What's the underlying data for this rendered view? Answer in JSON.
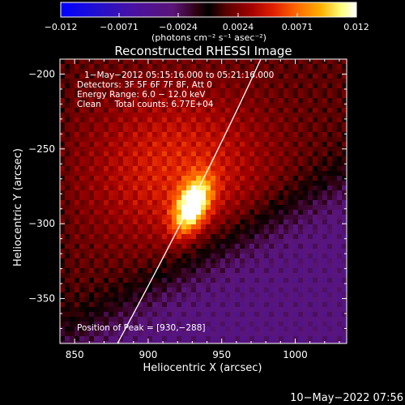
{
  "colorbar": {
    "ticks": [
      "−0.012",
      "−0.0071",
      "−0.0024",
      "0.0024",
      "0.0071",
      "0.012"
    ],
    "units": "(photons cm⁻² s⁻¹ asec⁻²)",
    "colormap": [
      "#0000ff",
      "#2010d0",
      "#4a12a0",
      "#5a1578",
      "#2e0010",
      "#000000",
      "#5a0000",
      "#a00000",
      "#e02000",
      "#ff6a00",
      "#ffb000",
      "#ffff80",
      "#ffffff"
    ]
  },
  "image": {
    "title": "Reconstructed RHESSI Image",
    "info_lines": [
      "1−May−2012 05:15:16.000 to 05:21:16.000",
      "Detectors: 3F 5F 6F 7F 8F, Att 0",
      "Energy Range: 6.0 − 12.0 keV",
      "Clean     Total counts: 6.77E+04"
    ],
    "peak_label": "Position of Peak = [930,−288]",
    "xlabel": "Heliocentric X (arcsec)",
    "ylabel": "Heliocentric Y (arcsec)",
    "x_range": [
      840,
      1035
    ],
    "y_range": [
      -380,
      -190
    ],
    "x_ticks": [
      "850",
      "900",
      "950",
      "1000"
    ],
    "y_ticks": [
      "−200",
      "−250",
      "−300",
      "−350"
    ],
    "x_tick_values": [
      850,
      900,
      950,
      1000
    ],
    "y_tick_values": [
      -200,
      -250,
      -300,
      -350
    ],
    "peak": [
      930,
      -288
    ]
  },
  "timestamp": "10−May−2022 07:56"
}
